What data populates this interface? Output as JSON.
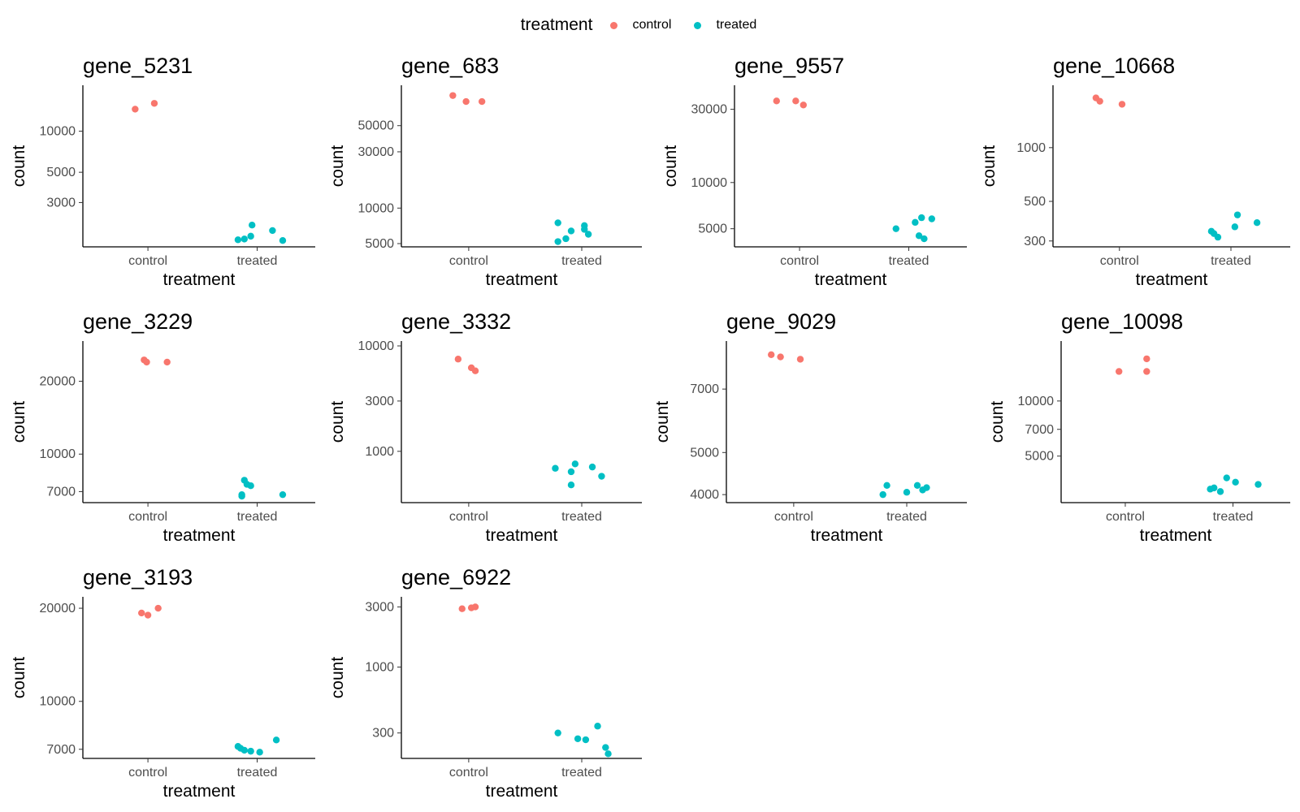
{
  "legend": {
    "title": "treatment",
    "items": [
      {
        "label": "control",
        "color": "#F8766D"
      },
      {
        "label": "treated",
        "color": "#00BFC4"
      }
    ]
  },
  "chart_data": [
    {
      "type": "scatter",
      "title": "gene_5231",
      "xlabel": "treatment",
      "ylabel": "count",
      "scale": "log10",
      "ylim": [
        1500,
        20000
      ],
      "categories": [
        "control",
        "treated"
      ],
      "yticks": [
        3000,
        5000,
        10000
      ],
      "series": [
        {
          "name": "control",
          "points": [
            {
              "x": -0.1,
              "y": 14500
            },
            {
              "x": 0.05,
              "y": 16000
            }
          ]
        },
        {
          "name": "treated",
          "points": [
            {
              "x": -0.15,
              "y": 1600
            },
            {
              "x": -0.1,
              "y": 1620
            },
            {
              "x": -0.05,
              "y": 1700
            },
            {
              "x": -0.04,
              "y": 2050
            },
            {
              "x": 0.12,
              "y": 1870
            },
            {
              "x": 0.2,
              "y": 1580
            }
          ]
        }
      ]
    },
    {
      "type": "scatter",
      "title": "gene_683",
      "xlabel": "treatment",
      "ylabel": "count",
      "scale": "log10",
      "ylim": [
        5000,
        100000
      ],
      "categories": [
        "control",
        "treated"
      ],
      "yticks": [
        5000,
        10000,
        30000,
        50000
      ],
      "series": [
        {
          "name": "control",
          "points": [
            {
              "x": -0.12,
              "y": 90000
            },
            {
              "x": -0.02,
              "y": 80000
            },
            {
              "x": 0.1,
              "y": 80000
            }
          ]
        },
        {
          "name": "treated",
          "points": [
            {
              "x": -0.18,
              "y": 7500
            },
            {
              "x": -0.18,
              "y": 5200
            },
            {
              "x": -0.12,
              "y": 5500
            },
            {
              "x": -0.08,
              "y": 6400
            },
            {
              "x": 0.02,
              "y": 7100
            },
            {
              "x": 0.02,
              "y": 6600
            },
            {
              "x": 0.05,
              "y": 6000
            }
          ]
        }
      ]
    },
    {
      "type": "scatter",
      "title": "gene_9557",
      "xlabel": "treatment",
      "ylabel": "count",
      "scale": "log10",
      "ylim": [
        4000,
        40000
      ],
      "categories": [
        "control",
        "treated"
      ],
      "yticks": [
        5000,
        10000,
        30000
      ],
      "series": [
        {
          "name": "control",
          "points": [
            {
              "x": -0.18,
              "y": 34000
            },
            {
              "x": -0.03,
              "y": 34000
            },
            {
              "x": 0.03,
              "y": 32000
            }
          ]
        },
        {
          "name": "treated",
          "points": [
            {
              "x": -0.1,
              "y": 5000
            },
            {
              "x": 0.05,
              "y": 5500
            },
            {
              "x": 0.1,
              "y": 5900
            },
            {
              "x": 0.08,
              "y": 4500
            },
            {
              "x": 0.12,
              "y": 4300
            },
            {
              "x": 0.18,
              "y": 5800
            }
          ]
        }
      ]
    },
    {
      "type": "scatter",
      "title": "gene_10668",
      "xlabel": "treatment",
      "ylabel": "count",
      "scale": "log10",
      "ylim": [
        290,
        2100
      ],
      "categories": [
        "control",
        "treated"
      ],
      "yticks": [
        300,
        500,
        1000
      ],
      "series": [
        {
          "name": "control",
          "points": [
            {
              "x": -0.18,
              "y": 1900
            },
            {
              "x": -0.15,
              "y": 1820
            },
            {
              "x": 0.02,
              "y": 1750
            }
          ]
        },
        {
          "name": "treated",
          "points": [
            {
              "x": -0.15,
              "y": 340
            },
            {
              "x": -0.13,
              "y": 330
            },
            {
              "x": -0.1,
              "y": 315
            },
            {
              "x": 0.03,
              "y": 360
            },
            {
              "x": 0.05,
              "y": 420
            },
            {
              "x": 0.2,
              "y": 380
            }
          ]
        }
      ]
    },
    {
      "type": "scatter",
      "title": "gene_3229",
      "xlabel": "treatment",
      "ylabel": "count",
      "scale": "log10",
      "ylim": [
        6500,
        28000
      ],
      "categories": [
        "control",
        "treated"
      ],
      "yticks": [
        7000,
        10000,
        20000
      ],
      "series": [
        {
          "name": "control",
          "points": [
            {
              "x": -0.03,
              "y": 24500
            },
            {
              "x": -0.01,
              "y": 24000
            },
            {
              "x": 0.15,
              "y": 24000
            }
          ]
        },
        {
          "name": "treated",
          "points": [
            {
              "x": -0.1,
              "y": 7800
            },
            {
              "x": -0.08,
              "y": 7500
            },
            {
              "x": -0.05,
              "y": 7400
            },
            {
              "x": -0.12,
              "y": 6800
            },
            {
              "x": -0.12,
              "y": 6700
            },
            {
              "x": 0.2,
              "y": 6800
            }
          ]
        }
      ]
    },
    {
      "type": "scatter",
      "title": "gene_3332",
      "xlabel": "treatment",
      "ylabel": "count",
      "scale": "log10",
      "ylim": [
        350,
        10000
      ],
      "categories": [
        "control",
        "treated"
      ],
      "yticks": [
        1000,
        3000,
        10000
      ],
      "series": [
        {
          "name": "control",
          "points": [
            {
              "x": -0.08,
              "y": 7500
            },
            {
              "x": 0.02,
              "y": 6200
            },
            {
              "x": 0.05,
              "y": 5800
            }
          ]
        },
        {
          "name": "treated",
          "points": [
            {
              "x": -0.2,
              "y": 690
            },
            {
              "x": -0.08,
              "y": 640
            },
            {
              "x": -0.05,
              "y": 760
            },
            {
              "x": 0.08,
              "y": 710
            },
            {
              "x": -0.08,
              "y": 480
            },
            {
              "x": 0.15,
              "y": 580
            }
          ]
        }
      ]
    },
    {
      "type": "scatter",
      "title": "gene_9029",
      "xlabel": "treatment",
      "ylabel": "count",
      "scale": "log10",
      "ylim": [
        3900,
        8800
      ],
      "categories": [
        "control",
        "treated"
      ],
      "yticks": [
        4000,
        5000,
        7000
      ],
      "series": [
        {
          "name": "control",
          "points": [
            {
              "x": -0.17,
              "y": 8400
            },
            {
              "x": -0.1,
              "y": 8300
            },
            {
              "x": 0.05,
              "y": 8200
            }
          ]
        },
        {
          "name": "treated",
          "points": [
            {
              "x": -0.18,
              "y": 4000
            },
            {
              "x": -0.15,
              "y": 4200
            },
            {
              "x": 0.0,
              "y": 4050
            },
            {
              "x": 0.08,
              "y": 4200
            },
            {
              "x": 0.12,
              "y": 4100
            },
            {
              "x": 0.15,
              "y": 4150
            }
          ]
        }
      ]
    },
    {
      "type": "scatter",
      "title": "gene_10098",
      "xlabel": "treatment",
      "ylabel": "count",
      "scale": "log10",
      "ylim": [
        2900,
        20000
      ],
      "categories": [
        "control",
        "treated"
      ],
      "yticks": [
        5000,
        7000,
        10000
      ],
      "series": [
        {
          "name": "control",
          "points": [
            {
              "x": -0.05,
              "y": 14500
            },
            {
              "x": 0.17,
              "y": 14500
            },
            {
              "x": 0.17,
              "y": 17000
            }
          ]
        },
        {
          "name": "treated",
          "points": [
            {
              "x": -0.18,
              "y": 3300
            },
            {
              "x": -0.15,
              "y": 3350
            },
            {
              "x": -0.1,
              "y": 3200
            },
            {
              "x": -0.05,
              "y": 3800
            },
            {
              "x": 0.02,
              "y": 3600
            },
            {
              "x": 0.2,
              "y": 3500
            }
          ]
        }
      ]
    },
    {
      "type": "scatter",
      "title": "gene_3193",
      "xlabel": "treatment",
      "ylabel": "count",
      "scale": "log10",
      "ylim": [
        6700,
        21000
      ],
      "categories": [
        "control",
        "treated"
      ],
      "yticks": [
        7000,
        10000,
        20000
      ],
      "series": [
        {
          "name": "control",
          "points": [
            {
              "x": -0.05,
              "y": 19300
            },
            {
              "x": 0.0,
              "y": 19000
            },
            {
              "x": 0.08,
              "y": 20000
            }
          ]
        },
        {
          "name": "treated",
          "points": [
            {
              "x": -0.15,
              "y": 7150
            },
            {
              "x": -0.13,
              "y": 7050
            },
            {
              "x": -0.1,
              "y": 6950
            },
            {
              "x": -0.05,
              "y": 6900
            },
            {
              "x": 0.02,
              "y": 6850
            },
            {
              "x": 0.15,
              "y": 7500
            }
          ]
        }
      ]
    },
    {
      "type": "scatter",
      "title": "gene_6922",
      "xlabel": "treatment",
      "ylabel": "count",
      "scale": "log10",
      "ylim": [
        200,
        3300
      ],
      "categories": [
        "control",
        "treated"
      ],
      "yticks": [
        300,
        1000,
        3000
      ],
      "series": [
        {
          "name": "control",
          "points": [
            {
              "x": -0.05,
              "y": 2900
            },
            {
              "x": 0.02,
              "y": 2950
            },
            {
              "x": 0.05,
              "y": 3000
            }
          ]
        },
        {
          "name": "treated",
          "points": [
            {
              "x": -0.18,
              "y": 300
            },
            {
              "x": -0.03,
              "y": 270
            },
            {
              "x": 0.03,
              "y": 265
            },
            {
              "x": 0.12,
              "y": 340
            },
            {
              "x": 0.18,
              "y": 230
            },
            {
              "x": 0.2,
              "y": 205
            }
          ]
        }
      ]
    }
  ]
}
